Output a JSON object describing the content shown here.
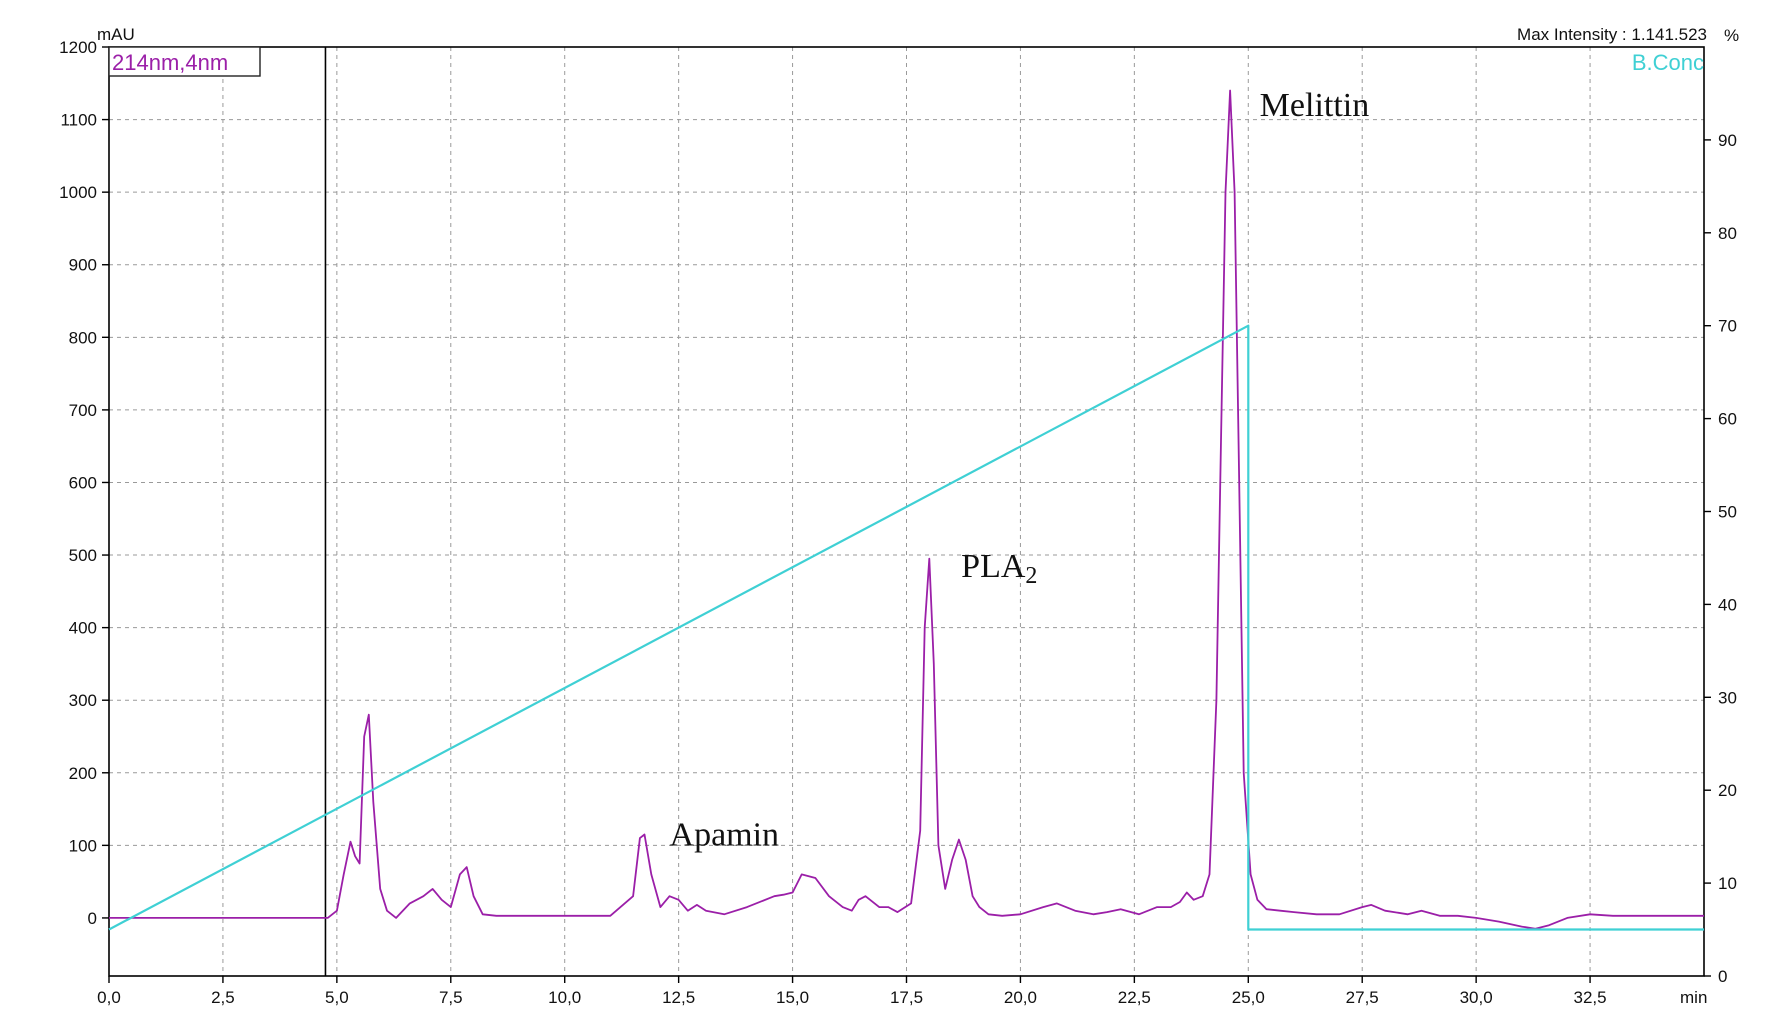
{
  "chart_data": {
    "type": "line",
    "left_unit": "mAU",
    "right_unit": "%",
    "x_unit": "min",
    "legend_label": "214nm,4nm",
    "right_legend": "B.Conc",
    "max_intensity": "Max Intensity : 1.141.523",
    "x_ticks": [
      "0,0",
      "2,5",
      "5,0",
      "7,5",
      "10,0",
      "12,5",
      "15,0",
      "17,5",
      "20,0",
      "22,5",
      "25,0",
      "27,5",
      "30,0",
      "32,5"
    ],
    "y_ticks": [
      0,
      100,
      200,
      300,
      400,
      500,
      600,
      700,
      800,
      900,
      1000,
      1100,
      1200
    ],
    "y2_ticks": [
      0,
      10,
      20,
      30,
      40,
      50,
      60,
      70,
      80,
      90
    ],
    "xlim": [
      0,
      35
    ],
    "ylim": [
      -80,
      1200
    ],
    "y2lim": [
      0,
      100
    ],
    "marker_line_x": 4.75,
    "colors": {
      "absorbance": "#9b1fa8",
      "conc": "#3fd0d4",
      "grid": "#9a9a9a"
    },
    "series": [
      {
        "name": "214nm,4nm",
        "axis": "left",
        "color": "#9b1fa8",
        "x": [
          0,
          4.5,
          4.8,
          5.0,
          5.15,
          5.3,
          5.4,
          5.5,
          5.6,
          5.7,
          5.8,
          5.95,
          6.1,
          6.3,
          6.6,
          6.9,
          7.1,
          7.3,
          7.5,
          7.7,
          7.85,
          8.0,
          8.2,
          8.5,
          9.0,
          10.0,
          10.5,
          11.0,
          11.5,
          11.65,
          11.75,
          11.9,
          12.1,
          12.3,
          12.5,
          12.7,
          12.9,
          13.1,
          13.5,
          14.0,
          14.6,
          14.8,
          15.0,
          15.2,
          15.5,
          15.8,
          16.1,
          16.3,
          16.45,
          16.6,
          16.9,
          17.1,
          17.3,
          17.6,
          17.8,
          17.9,
          18.0,
          18.1,
          18.2,
          18.35,
          18.5,
          18.65,
          18.8,
          18.95,
          19.1,
          19.3,
          19.6,
          20.0,
          20.5,
          20.8,
          21.2,
          21.6,
          21.9,
          22.2,
          22.6,
          23.0,
          23.3,
          23.5,
          23.65,
          23.8,
          24.0,
          24.15,
          24.3,
          24.4,
          24.5,
          24.6,
          24.7,
          24.8,
          24.9,
          25.05,
          25.2,
          25.4,
          25.7,
          26.0,
          26.5,
          27.0,
          27.5,
          27.7,
          28.0,
          28.5,
          28.8,
          29.2,
          29.6,
          30.0,
          30.5,
          31.0,
          31.3,
          31.6,
          32.0,
          32.5,
          33.0,
          34.0,
          35.0
        ],
        "y": [
          0,
          0,
          0,
          10,
          60,
          105,
          85,
          75,
          250,
          280,
          160,
          40,
          10,
          0,
          20,
          30,
          40,
          25,
          15,
          60,
          70,
          30,
          5,
          3,
          3,
          3,
          3,
          3,
          30,
          110,
          115,
          60,
          15,
          30,
          25,
          10,
          18,
          10,
          5,
          15,
          30,
          32,
          35,
          60,
          55,
          30,
          15,
          10,
          25,
          30,
          15,
          15,
          8,
          20,
          120,
          400,
          495,
          350,
          100,
          40,
          80,
          108,
          80,
          30,
          15,
          5,
          3,
          5,
          15,
          20,
          10,
          5,
          8,
          12,
          5,
          15,
          15,
          22,
          35,
          25,
          30,
          60,
          300,
          650,
          1000,
          1140,
          1000,
          600,
          200,
          60,
          25,
          12,
          10,
          8,
          5,
          5,
          15,
          18,
          10,
          5,
          10,
          3,
          3,
          0,
          -5,
          -12,
          -15,
          -10,
          0,
          5,
          3,
          3,
          3
        ]
      },
      {
        "name": "B.Conc",
        "axis": "right",
        "color": "#3fd0d4",
        "x": [
          0,
          25.0,
          25.0,
          35.0
        ],
        "y": [
          5.0,
          70.0,
          5.0,
          5.0
        ]
      }
    ],
    "annotations": [
      {
        "label": "Melittin",
        "x": 25.25,
        "y": 1105
      },
      {
        "label": "PLA",
        "subscript": "2",
        "x": 18.7,
        "y": 470
      },
      {
        "label": "Apamin",
        "x": 12.3,
        "y": 100
      }
    ]
  }
}
